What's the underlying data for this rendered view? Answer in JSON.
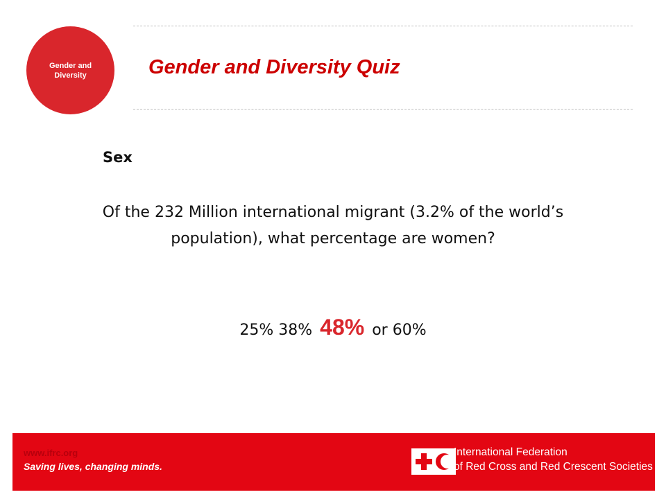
{
  "badge": {
    "label": "Gender and Diversity"
  },
  "header": {
    "title": "Gender and Diversity Quiz"
  },
  "content": {
    "subtitle": "Sex",
    "question": "Of the 232 Million international migrant (3.2% of the world’s population), what percentage are women?",
    "options": {
      "first": "25% 38%",
      "answer": "48%",
      "rest": "or 60%"
    }
  },
  "footer": {
    "url": "www.ifrc.org",
    "tagline": "Saving lives, changing minds.",
    "org_line1": "International Federation",
    "org_line2": "of Red Cross and Red Crescent Societies"
  },
  "colors": {
    "brand_red": "#e30613",
    "badge_red": "#d9262c",
    "title_red": "#cc0000"
  },
  "icons": {
    "emblem": "red-cross-red-crescent-emblem"
  }
}
